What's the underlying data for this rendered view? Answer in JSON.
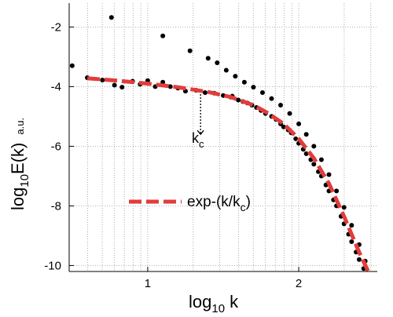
{
  "chart_data": {
    "type": "scatter",
    "xlabel": {
      "main": "log",
      "sub": "10",
      "tail": " k"
    },
    "ylabel": {
      "main": "log",
      "sub": "10",
      "tail": "E(k)",
      "unit": "a.u."
    },
    "xlim": [
      0.48,
      2.52
    ],
    "ylim": [
      -10.2,
      -1.2
    ],
    "x_ticks": [
      1,
      2
    ],
    "x_tick_labels": [
      "1",
      "2"
    ],
    "y_ticks": [
      -2,
      -4,
      -6,
      -8,
      -10
    ],
    "y_tick_labels": [
      "-2",
      "-4",
      "-6",
      "-8",
      "-10"
    ],
    "grid": true,
    "series": [
      {
        "style": "points",
        "color": "#000000",
        "points": [
          [
            0.5,
            -3.3
          ],
          [
            0.6,
            -3.7
          ],
          [
            0.7,
            -3.78
          ],
          [
            0.78,
            -3.95
          ],
          [
            0.83,
            -4.02
          ],
          [
            0.9,
            -3.82
          ],
          [
            0.95,
            -3.92
          ],
          [
            1.0,
            -3.8
          ],
          [
            1.05,
            -4.0
          ],
          [
            1.1,
            -3.85
          ],
          [
            1.15,
            -4.0
          ],
          [
            1.2,
            -4.05
          ],
          [
            1.25,
            -4.15
          ],
          [
            1.32,
            -4.12
          ],
          [
            1.38,
            -4.2
          ],
          [
            1.44,
            -4.22
          ],
          [
            1.5,
            -4.3
          ],
          [
            1.55,
            -4.35
          ],
          [
            1.6,
            -4.45
          ],
          [
            1.66,
            -4.55
          ],
          [
            1.72,
            -4.7
          ],
          [
            1.78,
            -4.9
          ],
          [
            1.85,
            -5.1
          ],
          [
            1.9,
            -5.35
          ],
          [
            1.95,
            -5.55
          ],
          [
            2.0,
            -5.9
          ],
          [
            2.05,
            -6.25
          ],
          [
            2.1,
            -6.6
          ],
          [
            2.15,
            -7.0
          ],
          [
            2.2,
            -7.5
          ],
          [
            2.25,
            -8.0
          ],
          [
            2.3,
            -8.6
          ],
          [
            2.35,
            -9.2
          ],
          [
            2.4,
            -9.8
          ],
          [
            2.43,
            -10.1
          ],
          [
            1.56,
            -4.32
          ],
          [
            1.63,
            -4.5
          ],
          [
            1.69,
            -4.62
          ],
          [
            1.75,
            -4.8
          ],
          [
            1.82,
            -5.0
          ],
          [
            1.88,
            -5.25
          ],
          [
            1.93,
            -5.45
          ],
          [
            1.98,
            -5.75
          ],
          [
            2.03,
            -6.1
          ],
          [
            2.08,
            -6.45
          ],
          [
            2.13,
            -6.85
          ],
          [
            2.18,
            -7.3
          ],
          [
            2.23,
            -7.8
          ],
          [
            2.28,
            -8.35
          ],
          [
            2.33,
            -8.95
          ],
          [
            2.38,
            -9.55
          ]
        ]
      },
      {
        "style": "points",
        "color": "#000000",
        "points": [
          [
            0.76,
            -1.68
          ],
          [
            1.1,
            -2.3
          ],
          [
            1.28,
            -2.8
          ],
          [
            1.4,
            -3.05
          ],
          [
            1.46,
            -3.2
          ],
          [
            1.52,
            -3.45
          ],
          [
            1.58,
            -3.65
          ],
          [
            1.64,
            -3.85
          ],
          [
            1.7,
            -4.02
          ],
          [
            1.76,
            -4.2
          ],
          [
            1.82,
            -4.4
          ],
          [
            1.88,
            -4.62
          ],
          [
            1.94,
            -4.9
          ],
          [
            2.0,
            -5.25
          ],
          [
            2.05,
            -5.6
          ],
          [
            2.1,
            -6.0
          ],
          [
            2.15,
            -6.45
          ],
          [
            2.2,
            -6.95
          ],
          [
            2.25,
            -7.5
          ],
          [
            2.3,
            -8.05
          ],
          [
            2.35,
            -8.65
          ],
          [
            2.4,
            -9.3
          ],
          [
            2.44,
            -9.85
          ]
        ]
      },
      {
        "style": "dashed-line",
        "color": "#e23c3c",
        "points": [
          [
            0.6,
            -3.72
          ],
          [
            0.8,
            -3.8
          ],
          [
            1.0,
            -3.9
          ],
          [
            1.2,
            -4.02
          ],
          [
            1.4,
            -4.18
          ],
          [
            1.55,
            -4.35
          ],
          [
            1.7,
            -4.62
          ],
          [
            1.8,
            -4.9
          ],
          [
            1.9,
            -5.25
          ],
          [
            2.0,
            -5.75
          ],
          [
            2.1,
            -6.4
          ],
          [
            2.2,
            -7.25
          ],
          [
            2.3,
            -8.35
          ],
          [
            2.4,
            -9.55
          ],
          [
            2.46,
            -10.2
          ]
        ]
      }
    ],
    "annotations": [
      {
        "text": "k",
        "sub": "c",
        "arrow_from": [
          1.35,
          -4.2
        ],
        "arrow_to": [
          1.35,
          -5.6
        ]
      }
    ],
    "legend": {
      "label": "exp-(k/k",
      "sub": "c",
      "tail": ")",
      "placement": "lower-left"
    }
  }
}
